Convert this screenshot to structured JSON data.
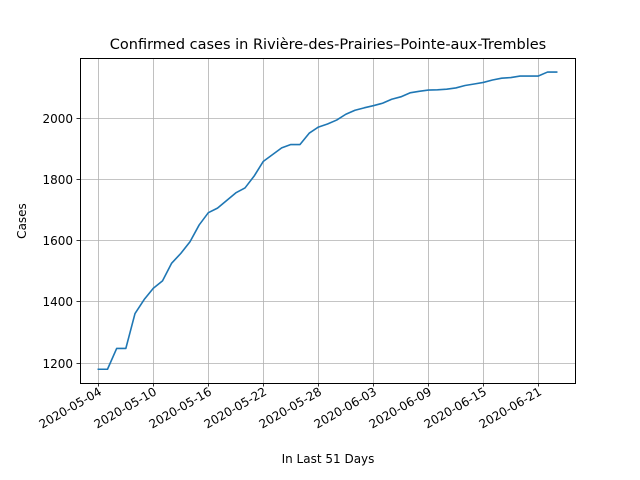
{
  "chart_data": {
    "type": "line",
    "title": "Confirmed cases in Rivière-des-Prairies–Pointe-aux-Trembles",
    "xlabel": "In Last 51 Days",
    "ylabel": "Cases",
    "grid": true,
    "line_color": "#1f77b4",
    "x_range": [
      "2020-05-02",
      "2020-06-25"
    ],
    "ylim": [
      1133,
      2196
    ],
    "x_ticks": [
      "2020-05-04",
      "2020-05-10",
      "2020-05-16",
      "2020-05-22",
      "2020-05-28",
      "2020-06-03",
      "2020-06-09",
      "2020-06-15",
      "2020-06-21"
    ],
    "y_ticks": [
      1200,
      1400,
      1600,
      1800,
      2000
    ],
    "x": [
      "2020-05-04",
      "2020-05-05",
      "2020-05-06",
      "2020-05-07",
      "2020-05-08",
      "2020-05-09",
      "2020-05-10",
      "2020-05-11",
      "2020-05-12",
      "2020-05-13",
      "2020-05-14",
      "2020-05-15",
      "2020-05-16",
      "2020-05-17",
      "2020-05-18",
      "2020-05-19",
      "2020-05-20",
      "2020-05-21",
      "2020-05-22",
      "2020-05-23",
      "2020-05-24",
      "2020-05-25",
      "2020-05-26",
      "2020-05-27",
      "2020-05-28",
      "2020-05-29",
      "2020-05-30",
      "2020-05-31",
      "2020-06-01",
      "2020-06-02",
      "2020-06-03",
      "2020-06-04",
      "2020-06-05",
      "2020-06-06",
      "2020-06-07",
      "2020-06-08",
      "2020-06-09",
      "2020-06-10",
      "2020-06-11",
      "2020-06-12",
      "2020-06-13",
      "2020-06-14",
      "2020-06-15",
      "2020-06-16",
      "2020-06-17",
      "2020-06-18",
      "2020-06-19",
      "2020-06-20",
      "2020-06-21",
      "2020-06-22",
      "2020-06-23"
    ],
    "values": [
      1178,
      1178,
      1246,
      1246,
      1360,
      1406,
      1443,
      1467,
      1525,
      1557,
      1595,
      1650,
      1690,
      1705,
      1730,
      1755,
      1771,
      1810,
      1858,
      1880,
      1902,
      1913,
      1913,
      1950,
      1970,
      1980,
      1993,
      2012,
      2025,
      2033,
      2040,
      2048,
      2061,
      2069,
      2082,
      2087,
      2091,
      2092,
      2094,
      2098,
      2106,
      2111,
      2116,
      2124,
      2130,
      2132,
      2137,
      2137,
      2137,
      2150,
      2150
    ]
  }
}
